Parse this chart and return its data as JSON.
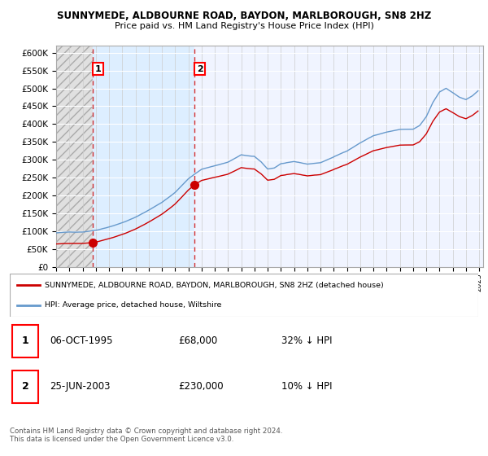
{
  "title": "SUNNYMEDE, ALDBOURNE ROAD, BAYDON, MARLBOROUGH, SN8 2HZ",
  "subtitle": "Price paid vs. HM Land Registry's House Price Index (HPI)",
  "ylim": [
    0,
    620000
  ],
  "yticks": [
    0,
    50000,
    100000,
    150000,
    200000,
    250000,
    300000,
    350000,
    400000,
    450000,
    500000,
    550000,
    600000
  ],
  "ytick_labels": [
    "£0",
    "£50K",
    "£100K",
    "£150K",
    "£200K",
    "£250K",
    "£300K",
    "£350K",
    "£400K",
    "£450K",
    "£500K",
    "£550K",
    "£600K"
  ],
  "sale1_date": 1995.79,
  "sale1_price": 68000,
  "sale1_label": "1",
  "sale2_date": 2003.48,
  "sale2_price": 230000,
  "sale2_label": "2",
  "hpi_line_color": "#6699cc",
  "sale_line_color": "#cc0000",
  "sale_dot_color": "#cc0000",
  "bg_hatch_color": "#d8d8d8",
  "bg_light_blue": "#ddeeff",
  "bg_white": "#f8f8ff",
  "legend_sale_label": "SUNNYMEDE, ALDBOURNE ROAD, BAYDON, MARLBOROUGH, SN8 2HZ (detached house)",
  "legend_hpi_label": "HPI: Average price, detached house, Wiltshire",
  "table_row1": [
    "1",
    "06-OCT-1995",
    "£68,000",
    "32% ↓ HPI"
  ],
  "table_row2": [
    "2",
    "25-JUN-2003",
    "£230,000",
    "10% ↓ HPI"
  ],
  "footer": "Contains HM Land Registry data © Crown copyright and database right 2024.\nThis data is licensed under the Open Government Licence v3.0.",
  "xlim_left": 1993.0,
  "xlim_right": 2025.3
}
